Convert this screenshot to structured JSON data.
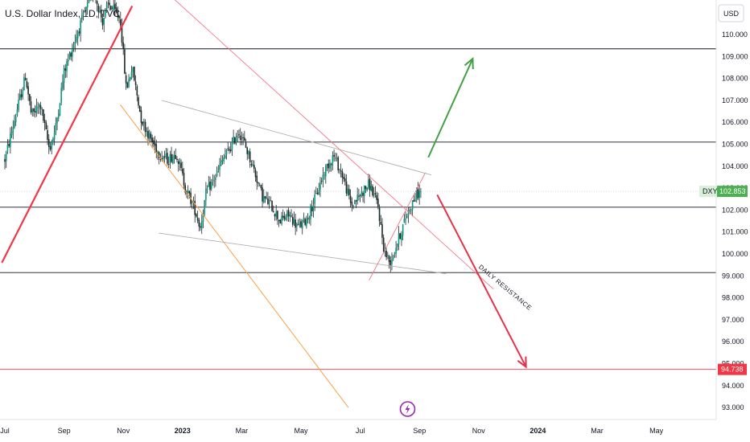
{
  "chart_data": {
    "type": "candlestick",
    "title": "U.S. Dollar Index, 1D, TVC",
    "currency_label": "USD",
    "ylim": [
      92.7,
      111.8
    ],
    "y_ticks": [
      "110.000",
      "109.000",
      "108.000",
      "107.000",
      "106.000",
      "105.000",
      "104.000",
      "103.000",
      "102.000",
      "101.000",
      "100.000",
      "99.000",
      "98.000",
      "97.000",
      "96.000",
      "95.000",
      "94.000",
      "93.000"
    ],
    "x_ticks": [
      {
        "label": "Jul",
        "bold": false
      },
      {
        "label": "Sep",
        "bold": false
      },
      {
        "label": "Nov",
        "bold": false
      },
      {
        "label": "2023",
        "bold": true
      },
      {
        "label": "Mar",
        "bold": false
      },
      {
        "label": "May",
        "bold": false
      },
      {
        "label": "Jul",
        "bold": false
      },
      {
        "label": "Sep",
        "bold": false
      },
      {
        "label": "Nov",
        "bold": false
      },
      {
        "label": "2024",
        "bold": true
      },
      {
        "label": "Mar",
        "bold": false
      },
      {
        "label": "May",
        "bold": false
      }
    ],
    "x_months": [
      0,
      2,
      4,
      6,
      8,
      10,
      12,
      14,
      16,
      18,
      20,
      22
    ],
    "price_anchors": [
      [
        0,
        104.3
      ],
      [
        0.4,
        106.5
      ],
      [
        0.7,
        108.1
      ],
      [
        0.9,
        106.3
      ],
      [
        1.2,
        106.8
      ],
      [
        1.5,
        104.8
      ],
      [
        1.7,
        105.6
      ],
      [
        2.0,
        108.3
      ],
      [
        2.3,
        109.5
      ],
      [
        2.7,
        111.0
      ],
      [
        3.0,
        112.0
      ],
      [
        3.3,
        110.6
      ],
      [
        3.5,
        111.4
      ],
      [
        3.9,
        110.7
      ],
      [
        4.1,
        107.5
      ],
      [
        4.3,
        108.5
      ],
      [
        4.6,
        106.2
      ],
      [
        4.9,
        105.3
      ],
      [
        5.2,
        104.6
      ],
      [
        5.5,
        104.3
      ],
      [
        5.8,
        104.6
      ],
      [
        6.1,
        103.0
      ],
      [
        6.4,
        102.1
      ],
      [
        6.6,
        101.2
      ],
      [
        6.8,
        102.8
      ],
      [
        7.1,
        103.5
      ],
      [
        7.4,
        104.4
      ],
      [
        7.6,
        104.8
      ],
      [
        7.9,
        105.6
      ],
      [
        8.1,
        105.0
      ],
      [
        8.4,
        103.9
      ],
      [
        8.7,
        102.6
      ],
      [
        9.0,
        102.2
      ],
      [
        9.3,
        101.5
      ],
      [
        9.6,
        101.8
      ],
      [
        9.9,
        101.2
      ],
      [
        10.2,
        101.6
      ],
      [
        10.5,
        102.6
      ],
      [
        10.8,
        103.8
      ],
      [
        11.1,
        104.5
      ],
      [
        11.4,
        103.6
      ],
      [
        11.7,
        102.2
      ],
      [
        12.0,
        102.7
      ],
      [
        12.3,
        103.2
      ],
      [
        12.6,
        102.2
      ],
      [
        12.8,
        100.2
      ],
      [
        13.0,
        99.6
      ],
      [
        13.3,
        100.7
      ],
      [
        13.6,
        101.9
      ],
      [
        13.9,
        102.7
      ],
      [
        14.05,
        102.85
      ]
    ],
    "horizontal_levels": [
      {
        "value": 109.35,
        "color": "#131722"
      },
      {
        "value": 105.1,
        "color": "#131722"
      },
      {
        "value": 102.13,
        "color": "#131722"
      },
      {
        "value": 99.15,
        "color": "#131722"
      },
      {
        "value": 94.738,
        "color": "#f23645"
      }
    ],
    "trendlines": [
      {
        "from": [
          -0.1,
          99.6
        ],
        "to": [
          4.3,
          111.3
        ],
        "color": "#f23645",
        "width": 2.2
      },
      {
        "from": [
          3.9,
          106.8
        ],
        "to": [
          11.6,
          93.0
        ],
        "color": "#f7a24a",
        "width": 1.0
      },
      {
        "from": [
          5.3,
          107.0
        ],
        "to": [
          14.4,
          103.6
        ],
        "color": "#b0b0b0",
        "width": 0.9
      },
      {
        "from": [
          5.2,
          100.95
        ],
        "to": [
          14.9,
          99.1
        ],
        "color": "#b0b0b0",
        "width": 0.9
      },
      {
        "from": [
          5.4,
          112.0
        ],
        "to": [
          16.5,
          98.4
        ],
        "color": "#f27887",
        "width": 0.9
      },
      {
        "from": [
          12.3,
          98.8
        ],
        "to": [
          14.2,
          103.7
        ],
        "color": "#f27887",
        "width": 0.9
      }
    ],
    "arrows": [
      {
        "from": [
          14.3,
          104.4
        ],
        "to": [
          15.8,
          108.9
        ],
        "color": "#43a047"
      },
      {
        "from": [
          14.6,
          102.7
        ],
        "to": [
          17.6,
          94.85
        ],
        "color": "#e53248"
      }
    ],
    "annotation": {
      "text": "DAILY RESISTANCE",
      "at": [
        16.85,
        98.4
      ],
      "angle": 40
    },
    "last_price": {
      "symbol": "DXY",
      "value": "102.853",
      "price": 102.853,
      "color": "#4caf50"
    },
    "level_badge": {
      "value": "94.738",
      "price": 94.738,
      "color": "#f23645"
    },
    "colors": {
      "up": "#089981",
      "down": "#1e2a2a",
      "wick": "#1e2a2a",
      "grid_dotted": "#d5d9e0",
      "flash_icon": "#9c27b0"
    },
    "flash_icon": "lightning-icon"
  }
}
